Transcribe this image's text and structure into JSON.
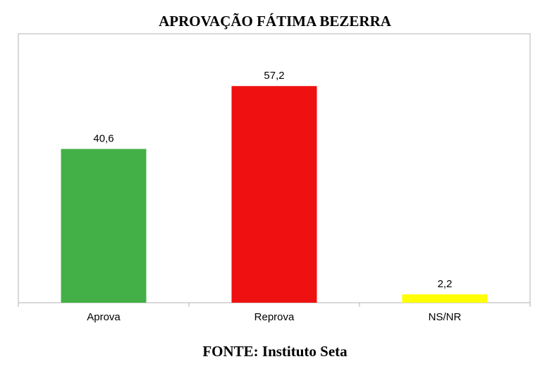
{
  "chart_data": {
    "type": "bar",
    "title": "APROVAÇÃO FÁTIMA BEZERRA",
    "categories": [
      "Aprova",
      "Reprova",
      "NS/NR"
    ],
    "values": [
      40.6,
      57.2,
      2.2
    ],
    "value_labels": [
      "40,6",
      "57,2",
      "2,2"
    ],
    "colors": [
      "#43b047",
      "#ef1111",
      "#ffff00"
    ],
    "ylim": [
      0,
      71
    ],
    "source": "FONTE: Instituto Seta"
  }
}
